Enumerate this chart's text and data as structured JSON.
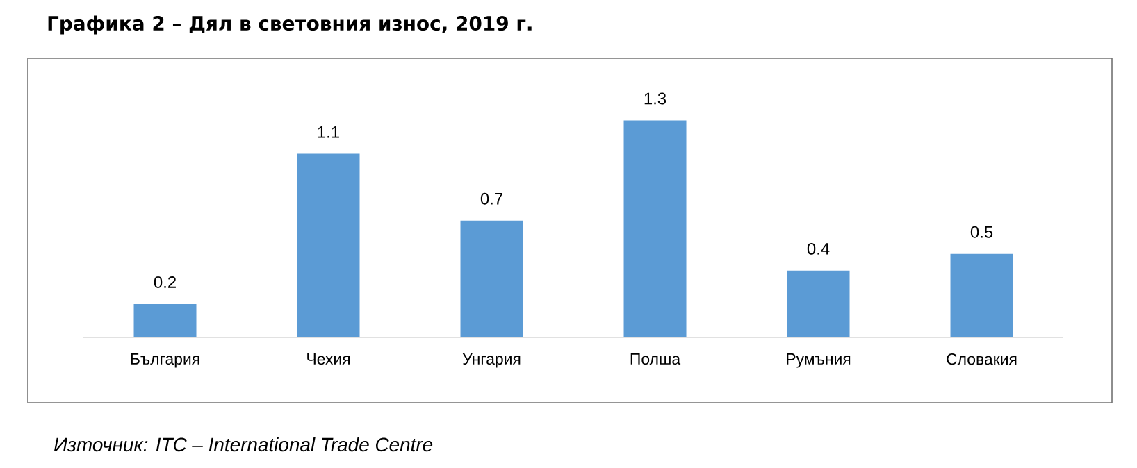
{
  "chart_data": {
    "type": "bar",
    "title": "Графика 2 – Дял в световния износ, 2019 г.",
    "categories": [
      "България",
      "Чехия",
      "Унгария",
      "Полша",
      "Румъния",
      "Словакия"
    ],
    "values": [
      0.2,
      1.1,
      0.7,
      1.3,
      0.4,
      0.5
    ],
    "color": "#5b9bd5",
    "data_labels": true,
    "annotations": [
      "Източник: ITC – International Trade Centre"
    ]
  }
}
